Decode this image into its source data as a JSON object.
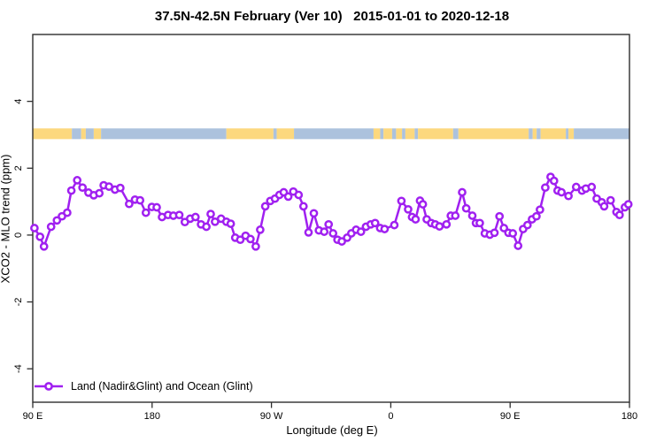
{
  "title": "37.5N-42.5N February (Ver 10)   2015-01-01 to 2020-12-18",
  "chart_data": {
    "type": "line",
    "title": "37.5N-42.5N February (Ver 10)   2015-01-01 to 2020-12-18",
    "xlabel": "Longitude (deg E)",
    "ylabel": "XCO2 - MLO trend (ppm)",
    "xlim": [
      90,
      540
    ],
    "ylim": [
      -5,
      6
    ],
    "grid": false,
    "x_ticks": [
      {
        "lon": 90,
        "label": "90 E"
      },
      {
        "lon": 180,
        "label": "180"
      },
      {
        "lon": 270,
        "label": "90 W"
      },
      {
        "lon": 360,
        "label": "0"
      },
      {
        "lon": 450,
        "label": "90 E"
      },
      {
        "lon": 540,
        "label": "180"
      }
    ],
    "y_ticks": [
      {
        "v": -4,
        "label": "-4"
      },
      {
        "v": -2,
        "label": "-2"
      },
      {
        "v": 0,
        "label": "0"
      },
      {
        "v": 2,
        "label": "2"
      },
      {
        "v": 4,
        "label": "4"
      }
    ],
    "legend": {
      "position": "bottom-left",
      "entries": [
        {
          "label": "Land (Nadir&Glint) and Ocean (Glint)",
          "color": "#A020F0",
          "marker": "open-circle"
        }
      ]
    },
    "land_ocean_strip": {
      "y_range": [
        2.87,
        3.19
      ],
      "colors": {
        "land": "#FCD87E",
        "ocean": "#ACC2DD"
      },
      "segments": [
        [
          "land",
          90,
          119.5
        ],
        [
          "ocean",
          119.5,
          126.5
        ],
        [
          "land",
          126.5,
          130
        ],
        [
          "ocean",
          130,
          136
        ],
        [
          "land",
          136,
          141.5
        ],
        [
          "ocean",
          141.5,
          236
        ],
        [
          "land",
          236,
          271.5
        ],
        [
          "ocean",
          271.5,
          274
        ],
        [
          "land",
          274,
          287
        ],
        [
          "ocean",
          287,
          347
        ],
        [
          "land",
          347,
          352
        ],
        [
          "ocean",
          352,
          354.5
        ],
        [
          "land",
          354.5,
          361
        ],
        [
          "ocean",
          361,
          364
        ],
        [
          "land",
          364,
          368.5
        ],
        [
          "ocean",
          368.5,
          371
        ],
        [
          "land",
          371,
          378
        ],
        [
          "ocean",
          378,
          380.5
        ],
        [
          "land",
          380.5,
          407
        ],
        [
          "ocean",
          407,
          411
        ],
        [
          "land",
          411,
          464
        ],
        [
          "ocean",
          464,
          467
        ],
        [
          "land",
          467,
          470
        ],
        [
          "ocean",
          470,
          473
        ],
        [
          "land",
          473,
          492
        ],
        [
          "ocean",
          492,
          494
        ],
        [
          "land",
          494,
          498
        ],
        [
          "ocean",
          498,
          540
        ]
      ]
    },
    "series": [
      {
        "name": "Land (Nadir&Glint) and Ocean (Glint)",
        "color": "#A020F0",
        "marker": "open-circle",
        "points": [
          [
            91.3,
            0.21
          ],
          [
            95.5,
            -0.05
          ],
          [
            98.5,
            -0.34
          ],
          [
            103.8,
            0.25
          ],
          [
            108.2,
            0.44
          ],
          [
            112,
            0.56
          ],
          [
            116,
            0.67
          ],
          [
            119.1,
            1.33
          ],
          [
            123.5,
            1.64
          ],
          [
            127.5,
            1.42
          ],
          [
            132,
            1.27
          ],
          [
            136,
            1.19
          ],
          [
            140.2,
            1.25
          ],
          [
            143.5,
            1.49
          ],
          [
            147.5,
            1.45
          ],
          [
            152,
            1.36
          ],
          [
            156,
            1.41
          ],
          [
            162.7,
            0.93
          ],
          [
            167.1,
            1.06
          ],
          [
            170.9,
            1.04
          ],
          [
            175.3,
            0.67
          ],
          [
            179.8,
            0.84
          ],
          [
            183.5,
            0.83
          ],
          [
            187.5,
            0.54
          ],
          [
            192,
            0.6
          ],
          [
            196,
            0.58
          ],
          [
            200.5,
            0.6
          ],
          [
            204.7,
            0.39
          ],
          [
            208.7,
            0.49
          ],
          [
            212.7,
            0.54
          ],
          [
            216.9,
            0.32
          ],
          [
            220.9,
            0.25
          ],
          [
            224.2,
            0.63
          ],
          [
            227.5,
            0.4
          ],
          [
            232,
            0.49
          ],
          [
            236,
            0.4
          ],
          [
            239.3,
            0.34
          ],
          [
            242.7,
            -0.08
          ],
          [
            246.5,
            -0.14
          ],
          [
            250.5,
            -0.02
          ],
          [
            254.2,
            -0.12
          ],
          [
            258.2,
            -0.34
          ],
          [
            261.5,
            0.16
          ],
          [
            265.3,
            0.86
          ],
          [
            269.1,
            1.02
          ],
          [
            272.7,
            1.09
          ],
          [
            276,
            1.2
          ],
          [
            279.3,
            1.28
          ],
          [
            282.7,
            1.15
          ],
          [
            286.5,
            1.3
          ],
          [
            290.5,
            1.2
          ],
          [
            294.2,
            0.86
          ],
          [
            298,
            0.08
          ],
          [
            302,
            0.65
          ],
          [
            305.8,
            0.14
          ],
          [
            309.8,
            0.1
          ],
          [
            313.1,
            0.32
          ],
          [
            316.5,
            0.05
          ],
          [
            319.8,
            -0.14
          ],
          [
            323.1,
            -0.19
          ],
          [
            327.1,
            -0.08
          ],
          [
            330.2,
            0.05
          ],
          [
            333.8,
            0.16
          ],
          [
            337.5,
            0.1
          ],
          [
            341.3,
            0.25
          ],
          [
            344.9,
            0.32
          ],
          [
            348.2,
            0.36
          ],
          [
            352,
            0.21
          ],
          [
            355.3,
            0.18
          ],
          [
            362.7,
            0.3
          ],
          [
            368,
            1.02
          ],
          [
            373.1,
            0.77
          ],
          [
            376,
            0.54
          ],
          [
            378.7,
            0.47
          ],
          [
            382,
            1.03
          ],
          [
            384.2,
            0.92
          ],
          [
            387.1,
            0.47
          ],
          [
            390.5,
            0.36
          ],
          [
            393.5,
            0.32
          ],
          [
            396.7,
            0.26
          ],
          [
            402,
            0.32
          ],
          [
            405.3,
            0.58
          ],
          [
            408.7,
            0.58
          ],
          [
            413.8,
            1.28
          ],
          [
            416.9,
            0.8
          ],
          [
            421.5,
            0.58
          ],
          [
            424.2,
            0.36
          ],
          [
            427.1,
            0.36
          ],
          [
            430.9,
            0.05
          ],
          [
            434.7,
            0.01
          ],
          [
            438.2,
            0.07
          ],
          [
            442,
            0.56
          ],
          [
            445.3,
            0.21
          ],
          [
            448.7,
            0.07
          ],
          [
            452,
            0.05
          ],
          [
            456,
            -0.32
          ],
          [
            459.8,
            0.18
          ],
          [
            463.1,
            0.3
          ],
          [
            466.5,
            0.47
          ],
          [
            469.8,
            0.56
          ],
          [
            472.5,
            0.76
          ],
          [
            476.5,
            1.42
          ],
          [
            480.5,
            1.74
          ],
          [
            483.1,
            1.62
          ],
          [
            485.8,
            1.33
          ],
          [
            488.7,
            1.28
          ],
          [
            494,
            1.17
          ],
          [
            499.8,
            1.44
          ],
          [
            504.2,
            1.33
          ],
          [
            507.1,
            1.39
          ],
          [
            511.5,
            1.44
          ],
          [
            515.3,
            1.09
          ],
          [
            519.1,
            0.98
          ],
          [
            520.9,
            0.86
          ],
          [
            525.8,
            1.04
          ],
          [
            530.2,
            0.69
          ],
          [
            532.5,
            0.6
          ],
          [
            536.5,
            0.83
          ],
          [
            539.1,
            0.92
          ]
        ]
      }
    ]
  },
  "colors": {
    "series": "#A020F0",
    "land": "#FCD87E",
    "ocean": "#ACC2DD",
    "axis": "#2e2e2e",
    "text": "#000000"
  }
}
